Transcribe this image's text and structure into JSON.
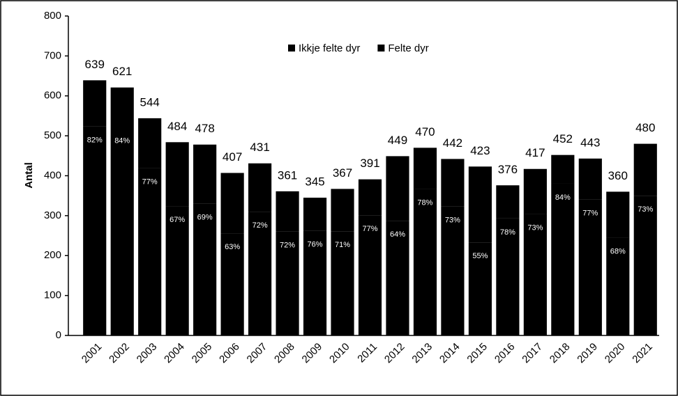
{
  "chart_data": {
    "type": "stacked_bar",
    "y_label": "Antal",
    "categories": [
      "2001",
      "2002",
      "2003",
      "2004",
      "2005",
      "2006",
      "2007",
      "2008",
      "2009",
      "2010",
      "2011",
      "2012",
      "2013",
      "2014",
      "2015",
      "2016",
      "2017",
      "2018",
      "2019",
      "2020",
      "2021"
    ],
    "series": [
      {
        "name": "Felte dyr",
        "color": "#000000",
        "values": [
          524,
          522,
          419,
          324,
          330,
          256,
          310,
          260,
          262,
          261,
          301,
          287,
          367,
          323,
          233,
          293,
          304,
          380,
          341,
          245,
          350
        ]
      },
      {
        "name": "Ikkje felte dyr",
        "color": "#000000",
        "values": [
          115,
          99,
          125,
          160,
          148,
          151,
          121,
          101,
          83,
          106,
          90,
          162,
          103,
          119,
          190,
          83,
          113,
          72,
          102,
          115,
          130
        ]
      }
    ],
    "totals": [
      639,
      621,
      544,
      484,
      478,
      407,
      431,
      361,
      345,
      367,
      391,
      449,
      470,
      442,
      423,
      376,
      417,
      452,
      443,
      360,
      480
    ],
    "shares": [
      {
        "value": 82,
        "label": "82%"
      },
      {
        "value": 84,
        "label": "84%"
      },
      {
        "value": 77,
        "label": "77%"
      },
      {
        "value": 67,
        "label": "67%"
      },
      {
        "value": 69,
        "label": "69%"
      },
      {
        "value": 63,
        "label": "63%"
      },
      {
        "value": 72,
        "label": "72%"
      },
      {
        "value": 72,
        "label": "72%"
      },
      {
        "value": 76,
        "label": "76%"
      },
      {
        "value": 71,
        "label": "71%"
      },
      {
        "value": 77,
        "label": "77%"
      },
      {
        "value": 64,
        "label": "64%"
      },
      {
        "value": 78,
        "label": "78%"
      },
      {
        "value": 73,
        "label": "73%"
      },
      {
        "value": 55,
        "label": "55%"
      },
      {
        "value": 78,
        "label": "78%"
      },
      {
        "value": 73,
        "label": "73%"
      },
      {
        "value": 84,
        "label": "84%"
      },
      {
        "value": 77,
        "label": "77%"
      },
      {
        "value": 68,
        "label": "68%"
      },
      {
        "value": 73,
        "label": "73%"
      }
    ],
    "ylim": [
      0,
      800
    ],
    "yticks": [
      0,
      100,
      200,
      300,
      400,
      500,
      600,
      700,
      800
    ],
    "legend": "top"
  }
}
